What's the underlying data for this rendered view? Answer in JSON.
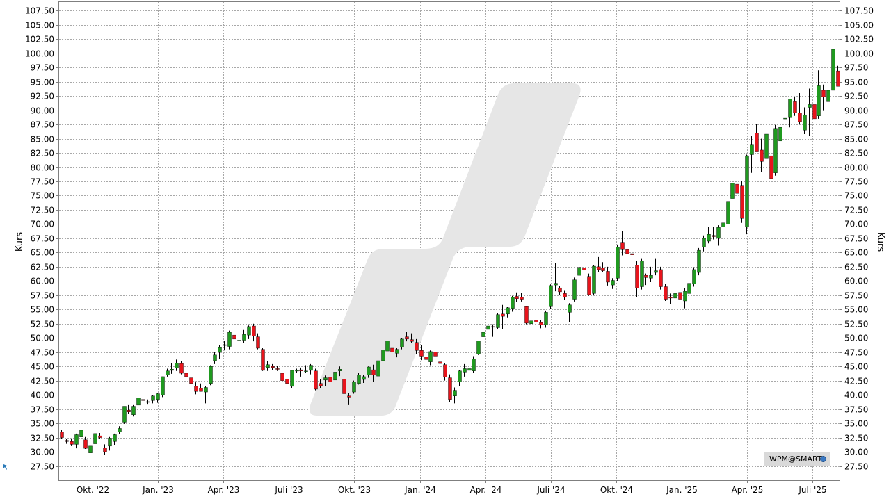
{
  "chart_data": {
    "type": "candlestick",
    "title": "",
    "ylabel_left": "Kurs",
    "ylabel_right": "Kurs",
    "ylim": [
      25.0,
      109.0
    ],
    "y_ticks": [
      "27.50",
      "30.00",
      "32.50",
      "35.00",
      "37.50",
      "40.00",
      "42.50",
      "45.00",
      "47.50",
      "50.00",
      "52.50",
      "55.00",
      "57.50",
      "60.00",
      "62.50",
      "65.00",
      "67.50",
      "70.00",
      "72.50",
      "75.00",
      "77.50",
      "80.00",
      "82.50",
      "85.00",
      "87.50",
      "90.00",
      "92.50",
      "95.00",
      "97.50",
      "100.00",
      "102.50",
      "105.00",
      "107.50"
    ],
    "x_ticks": [
      "Okt. '22",
      "Jan. '23",
      "Apr. '23",
      "Juli '23",
      "Okt. '23",
      "Jan. '24",
      "Apr. '24",
      "Juli '24",
      "Okt. '24",
      "Jan. '25",
      "Apr. '25",
      "Juli '25"
    ],
    "grid": true,
    "up_color": "#1f9a1f",
    "down_color": "#e8141c",
    "candles": [
      [
        33.5,
        33.8,
        32.3,
        32.5
      ],
      [
        32.0,
        32.3,
        31.4,
        31.8
      ],
      [
        31.8,
        32.2,
        31.0,
        31.3
      ],
      [
        31.3,
        33.2,
        30.6,
        33.0
      ],
      [
        32.6,
        34.0,
        32.4,
        33.8
      ],
      [
        32.1,
        32.6,
        30.5,
        30.6
      ],
      [
        29.8,
        31.2,
        28.6,
        31.0
      ],
      [
        31.4,
        33.5,
        31.0,
        33.2
      ],
      [
        32.8,
        33.3,
        32.3,
        32.5
      ],
      [
        30.7,
        31.3,
        29.5,
        30.0
      ],
      [
        31.0,
        32.6,
        30.2,
        32.4
      ],
      [
        31.8,
        33.2,
        31.2,
        33.0
      ],
      [
        33.5,
        34.5,
        33.1,
        34.1
      ],
      [
        35.2,
        38.0,
        34.9,
        38.0
      ],
      [
        37.3,
        38.2,
        36.6,
        37.0
      ],
      [
        36.5,
        38.2,
        36.2,
        38.0
      ],
      [
        38.2,
        40.0,
        37.8,
        39.5
      ],
      [
        39.2,
        39.9,
        38.8,
        39.0
      ],
      [
        38.7,
        39.2,
        38.3,
        38.8
      ],
      [
        39.0,
        40.0,
        38.5,
        39.8
      ],
      [
        39.2,
        40.3,
        38.6,
        40.2
      ],
      [
        40.0,
        43.2,
        39.6,
        43.2
      ],
      [
        43.5,
        44.6,
        43.2,
        44.2
      ],
      [
        44.3,
        45.6,
        43.7,
        44.5
      ],
      [
        44.7,
        46.2,
        44.2,
        45.6
      ],
      [
        45.5,
        46.0,
        43.6,
        43.8
      ],
      [
        43.8,
        44.1,
        43.0,
        43.2
      ],
      [
        43.0,
        43.4,
        40.8,
        42.0
      ],
      [
        41.5,
        42.2,
        40.1,
        40.6
      ],
      [
        41.2,
        42.0,
        40.6,
        40.6
      ],
      [
        40.5,
        41.5,
        38.5,
        41.3
      ],
      [
        42.0,
        45.2,
        41.7,
        45.0
      ],
      [
        46.0,
        47.5,
        45.4,
        47.0
      ],
      [
        47.5,
        48.8,
        46.3,
        48.3
      ],
      [
        48.7,
        49.5,
        47.8,
        48.8
      ],
      [
        48.5,
        51.3,
        48.0,
        51.0
      ],
      [
        50.5,
        52.8,
        49.3,
        49.8
      ],
      [
        49.5,
        50.2,
        48.6,
        49.6
      ],
      [
        49.6,
        51.4,
        49.1,
        50.6
      ],
      [
        50.5,
        52.2,
        49.8,
        52.0
      ],
      [
        52.1,
        52.5,
        49.4,
        50.3
      ],
      [
        50.2,
        50.8,
        48.0,
        48.2
      ],
      [
        48.0,
        48.2,
        44.2,
        44.3
      ],
      [
        44.8,
        46.0,
        44.2,
        45.3
      ],
      [
        45.0,
        45.4,
        44.3,
        44.8
      ],
      [
        44.6,
        45.1,
        44.2,
        44.5
      ],
      [
        43.8,
        44.1,
        42.3,
        42.5
      ],
      [
        42.8,
        43.3,
        41.8,
        42.0
      ],
      [
        41.5,
        44.4,
        41.2,
        44.3
      ],
      [
        44.2,
        44.6,
        43.8,
        44.3
      ],
      [
        44.4,
        44.8,
        43.2,
        44.2
      ],
      [
        44.1,
        45.2,
        43.8,
        44.2
      ],
      [
        44.3,
        45.4,
        43.6,
        45.2
      ],
      [
        44.2,
        44.6,
        40.8,
        41.0
      ],
      [
        42.0,
        42.8,
        41.2,
        41.6
      ],
      [
        42.6,
        43.4,
        41.5,
        43.0
      ],
      [
        43.1,
        43.4,
        42.0,
        42.3
      ],
      [
        42.6,
        44.3,
        42.1,
        44.0
      ],
      [
        44.2,
        45.0,
        43.3,
        44.5
      ],
      [
        42.8,
        43.2,
        39.5,
        40.2
      ],
      [
        39.8,
        40.3,
        38.2,
        39.6
      ],
      [
        40.5,
        42.5,
        40.2,
        42.3
      ],
      [
        42.0,
        43.8,
        41.8,
        43.5
      ],
      [
        42.7,
        43.5,
        42.1,
        43.2
      ],
      [
        43.5,
        45.0,
        43.0,
        44.9
      ],
      [
        44.4,
        45.3,
        42.3,
        43.5
      ],
      [
        43.3,
        46.2,
        43.0,
        46.0
      ],
      [
        46.0,
        48.5,
        45.8,
        47.9
      ],
      [
        47.7,
        49.7,
        47.2,
        49.5
      ],
      [
        48.2,
        49.2,
        47.2,
        47.5
      ],
      [
        47.3,
        48.2,
        46.6,
        48.0
      ],
      [
        48.4,
        50.0,
        48.0,
        49.8
      ],
      [
        50.2,
        51.0,
        49.4,
        49.8
      ],
      [
        49.7,
        50.8,
        49.1,
        49.4
      ],
      [
        49.2,
        49.8,
        47.1,
        47.8
      ],
      [
        47.8,
        48.7,
        46.1,
        46.8
      ],
      [
        46.7,
        47.3,
        45.6,
        46.2
      ],
      [
        45.8,
        47.8,
        45.2,
        47.6
      ],
      [
        47.5,
        48.5,
        46.3,
        46.8
      ],
      [
        45.8,
        46.3,
        45.0,
        45.5
      ],
      [
        45.3,
        45.6,
        42.5,
        43.1
      ],
      [
        43.0,
        43.6,
        38.7,
        39.2
      ],
      [
        39.8,
        41.3,
        38.5,
        40.8
      ],
      [
        42.3,
        44.3,
        41.6,
        44.2
      ],
      [
        44.0,
        45.4,
        43.2,
        44.6
      ],
      [
        44.3,
        45.0,
        42.5,
        44.6
      ],
      [
        44.2,
        46.8,
        43.9,
        46.3
      ],
      [
        47.2,
        49.5,
        47.0,
        49.5
      ],
      [
        50.2,
        51.8,
        48.2,
        51.0
      ],
      [
        51.5,
        52.6,
        50.8,
        52.1
      ],
      [
        52.0,
        52.4,
        50.2,
        51.9
      ],
      [
        51.8,
        54.4,
        51.5,
        54.1
      ],
      [
        54.2,
        55.8,
        51.6,
        53.8
      ],
      [
        54.2,
        55.4,
        53.6,
        55.3
      ],
      [
        55.2,
        57.4,
        54.6,
        57.2
      ],
      [
        57.3,
        58.0,
        56.3,
        56.9
      ],
      [
        57.2,
        57.9,
        56.4,
        56.8
      ],
      [
        55.5,
        55.6,
        52.4,
        52.6
      ],
      [
        52.5,
        53.8,
        52.2,
        53.0
      ],
      [
        53.1,
        53.6,
        52.5,
        52.8
      ],
      [
        52.7,
        53.2,
        51.7,
        52.3
      ],
      [
        52.3,
        54.8,
        51.8,
        54.5
      ],
      [
        55.5,
        59.4,
        55.1,
        59.2
      ],
      [
        59.3,
        63.1,
        58.2,
        59.6
      ],
      [
        58.8,
        59.1,
        57.6,
        58.1
      ],
      [
        57.8,
        58.4,
        56.7,
        57.2
      ],
      [
        54.5,
        56.1,
        52.8,
        55.8
      ],
      [
        56.8,
        60.6,
        56.4,
        60.2
      ],
      [
        61.0,
        62.7,
        60.5,
        62.4
      ],
      [
        62.3,
        63.0,
        61.5,
        61.9
      ],
      [
        60.8,
        61.3,
        57.4,
        57.6
      ],
      [
        57.8,
        62.8,
        57.5,
        62.6
      ],
      [
        62.5,
        64.2,
        61.6,
        62.0
      ],
      [
        62.3,
        63.3,
        61.5,
        61.8
      ],
      [
        61.7,
        62.5,
        59.2,
        59.8
      ],
      [
        59.3,
        60.5,
        58.6,
        60.1
      ],
      [
        60.5,
        66.4,
        60.0,
        66.0
      ],
      [
        66.8,
        68.8,
        64.5,
        65.5
      ],
      [
        65.5,
        66.1,
        64.2,
        64.8
      ],
      [
        64.8,
        65.2,
        64.3,
        64.6
      ],
      [
        62.8,
        63.5,
        57.2,
        58.8
      ],
      [
        59.0,
        64.0,
        58.5,
        63.5
      ],
      [
        61.0,
        61.3,
        59.3,
        60.6
      ],
      [
        60.5,
        62.5,
        59.8,
        61.0
      ],
      [
        61.5,
        64.0,
        61.0,
        61.8
      ],
      [
        62.0,
        62.5,
        58.5,
        59.0
      ],
      [
        59.0,
        59.5,
        56.5,
        56.8
      ],
      [
        57.2,
        57.8,
        56.0,
        57.0
      ],
      [
        57.0,
        58.5,
        55.6,
        57.8
      ],
      [
        58.0,
        58.6,
        55.8,
        56.8
      ],
      [
        56.5,
        58.7,
        55.2,
        58.2
      ],
      [
        57.8,
        60.0,
        57.3,
        59.6
      ],
      [
        59.5,
        62.4,
        59.0,
        62.0
      ],
      [
        61.5,
        65.8,
        61.0,
        65.4
      ],
      [
        66.0,
        68.0,
        65.2,
        67.5
      ],
      [
        67.0,
        69.5,
        66.6,
        68.2
      ],
      [
        68.0,
        69.5,
        67.3,
        67.8
      ],
      [
        67.5,
        69.8,
        66.2,
        69.4
      ],
      [
        69.5,
        71.5,
        68.8,
        70.2
      ],
      [
        70.0,
        74.5,
        69.5,
        74.0
      ],
      [
        74.5,
        77.8,
        74.0,
        77.2
      ],
      [
        77.0,
        78.5,
        73.2,
        75.4
      ],
      [
        76.8,
        77.5,
        70.2,
        71.0
      ],
      [
        69.5,
        82.2,
        68.2,
        82.0
      ],
      [
        82.2,
        85.5,
        79.0,
        84.0
      ],
      [
        86.0,
        87.6,
        83.4,
        82.8
      ],
      [
        83.0,
        85.0,
        79.2,
        81.0
      ],
      [
        81.5,
        86.0,
        80.5,
        85.8
      ],
      [
        82.0,
        82.3,
        75.2,
        78.0
      ],
      [
        79.0,
        87.4,
        78.5,
        86.8
      ],
      [
        84.6,
        87.6,
        84.2,
        87.0
      ],
      [
        88.5,
        95.3,
        87.8,
        88.6
      ],
      [
        88.7,
        92.0,
        87.0,
        92.0
      ],
      [
        91.5,
        92.3,
        89.0,
        89.5
      ],
      [
        89.5,
        93.0,
        87.5,
        88.0
      ],
      [
        86.5,
        90.5,
        85.8,
        89.2
      ],
      [
        90.5,
        93.8,
        85.5,
        91.0
      ],
      [
        91.0,
        94.0,
        87.3,
        88.5
      ],
      [
        89.0,
        97.0,
        88.5,
        94.3
      ],
      [
        93.5,
        94.5,
        90.0,
        92.3
      ],
      [
        91.5,
        94.7,
        90.8,
        93.5
      ],
      [
        93.5,
        103.9,
        93.2,
        100.7
      ],
      [
        96.9,
        97.8,
        94.4,
        94.2
      ]
    ]
  },
  "badge": {
    "label": "WPM@SMART",
    "icon": "globe-icon"
  }
}
